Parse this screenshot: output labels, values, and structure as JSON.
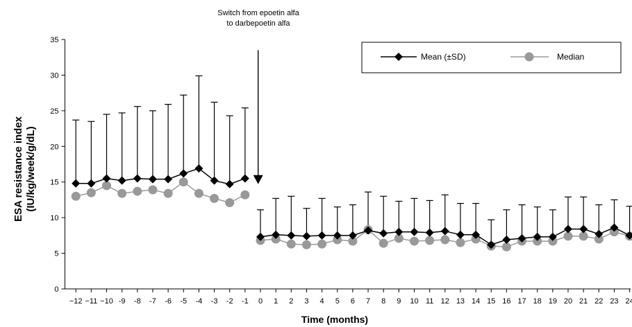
{
  "chart_data": {
    "type": "line",
    "xlabel": "Time (months)",
    "ylabel_line1": "ESA resistance index",
    "ylabel_line2": "(IU/kg/week/g/dL)",
    "ylim": [
      0,
      35
    ],
    "yticks": [
      0,
      5,
      10,
      15,
      20,
      25,
      30,
      35
    ],
    "x": [
      -12,
      -11,
      -10,
      -9,
      -8,
      -7,
      -6,
      -5,
      -4,
      -3,
      -2,
      -1,
      0,
      1,
      2,
      3,
      4,
      5,
      6,
      7,
      8,
      9,
      10,
      11,
      12,
      13,
      14,
      15,
      16,
      17,
      18,
      19,
      20,
      21,
      22,
      23,
      24
    ],
    "x_tick_labels": [
      "−12",
      "−11",
      "−10",
      "-9",
      "-8",
      "-7",
      "-6",
      "-5",
      "-4",
      "-3",
      "-2",
      "-1",
      "0",
      "1",
      "2",
      "3",
      "4",
      "5",
      "6",
      "7",
      "8",
      "9",
      "10",
      "11",
      "12",
      "13",
      "14",
      "15",
      "16",
      "17",
      "18",
      "19",
      "20",
      "21",
      "22",
      "23",
      "24"
    ],
    "annotation": {
      "line1": "Switch from epoetin alfa",
      "line2": "to darbepoetin alfa",
      "x": -0.15,
      "y_from": 33.5,
      "y_to": 14.7
    },
    "legend": {
      "position": "top-right",
      "mean_label": "Mean (±SD)",
      "median_label": "Median"
    },
    "colors": {
      "mean": "#000000",
      "median": "#999999"
    },
    "series": [
      {
        "name": "Mean (±SD)",
        "values": [
          14.8,
          14.8,
          15.5,
          15.2,
          15.5,
          15.4,
          15.4,
          16.2,
          16.9,
          15.2,
          14.7,
          15.5,
          7.3,
          7.6,
          7.5,
          7.4,
          7.5,
          7.5,
          7.5,
          8.2,
          7.8,
          8.0,
          8.0,
          7.9,
          8.1,
          7.6,
          7.6,
          6.2,
          6.9,
          7.1,
          7.3,
          7.3,
          8.4,
          8.4,
          7.7,
          8.6,
          7.5
        ],
        "sd_upper": [
          23.7,
          23.5,
          24.5,
          24.7,
          25.6,
          25.0,
          25.9,
          27.2,
          29.9,
          26.2,
          24.3,
          25.4,
          11.1,
          12.7,
          13.0,
          11.3,
          12.7,
          11.5,
          11.8,
          13.6,
          13.0,
          12.3,
          12.7,
          12.4,
          13.2,
          12.0,
          12.0,
          9.7,
          11.1,
          11.8,
          11.5,
          11.1,
          12.9,
          12.9,
          11.8,
          12.5,
          11.6
        ]
      },
      {
        "name": "Median",
        "values": [
          13.0,
          13.5,
          14.5,
          13.4,
          13.7,
          13.9,
          13.4,
          15.0,
          13.4,
          12.7,
          12.1,
          13.2,
          6.8,
          7.0,
          6.3,
          6.2,
          6.3,
          6.9,
          6.7,
          8.3,
          6.4,
          7.1,
          6.7,
          6.8,
          6.9,
          6.5,
          7.0,
          6.0,
          5.9,
          6.7,
          6.7,
          6.7,
          7.4,
          7.4,
          7.0,
          8.0,
          7.4
        ]
      }
    ]
  }
}
